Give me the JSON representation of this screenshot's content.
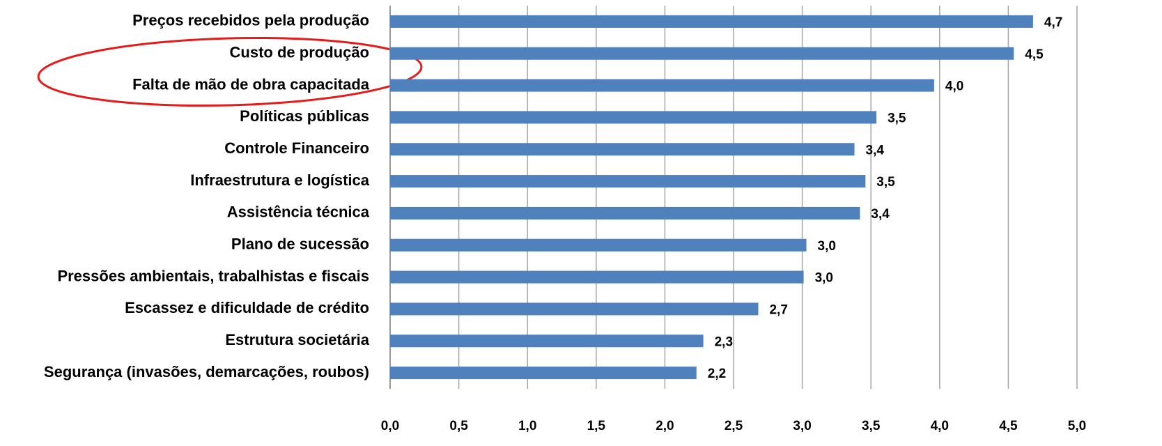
{
  "chart_data": {
    "type": "bar",
    "orientation": "horizontal",
    "categories": [
      "Preços recebidos pela produção",
      "Custo de produção",
      "Falta de mão de obra capacitada",
      "Políticas públicas",
      "Controle Financeiro",
      "Infraestrutura e logística",
      "Assistência técnica",
      "Plano de sucessão",
      "Pressões ambientais, trabalhistas e fiscais",
      "Escassez e dificuldade de crédito",
      "Estrutura societária",
      "Segurança (invasões, demarcações, roubos)"
    ],
    "values": [
      4.68,
      4.54,
      3.96,
      3.54,
      3.38,
      3.46,
      3.42,
      3.03,
      3.01,
      2.68,
      2.28,
      2.23
    ],
    "value_labels": [
      "4,7",
      "4,5",
      "4,0",
      "3,5",
      "3,4",
      "3,5",
      "3,4",
      "3,0",
      "3,0",
      "2,7",
      "2,3",
      "2,2"
    ],
    "color": "#4f81bd",
    "xlim": [
      0,
      5
    ],
    "xticks": [
      {
        "value": 0,
        "label": "0,0"
      },
      {
        "value": 0.5,
        "label": "0,5"
      },
      {
        "value": 1,
        "label": "1,0"
      },
      {
        "value": 1.5,
        "label": "1,5"
      },
      {
        "value": 2,
        "label": "2,0"
      },
      {
        "value": 2.5,
        "label": "2,5"
      },
      {
        "value": 3,
        "label": "3,0"
      },
      {
        "value": 3.5,
        "label": "3,5"
      },
      {
        "value": 4,
        "label": "4,0"
      },
      {
        "value": 4.5,
        "label": "4,5"
      },
      {
        "value": 5,
        "label": "5,0"
      }
    ],
    "grid": true
  }
}
